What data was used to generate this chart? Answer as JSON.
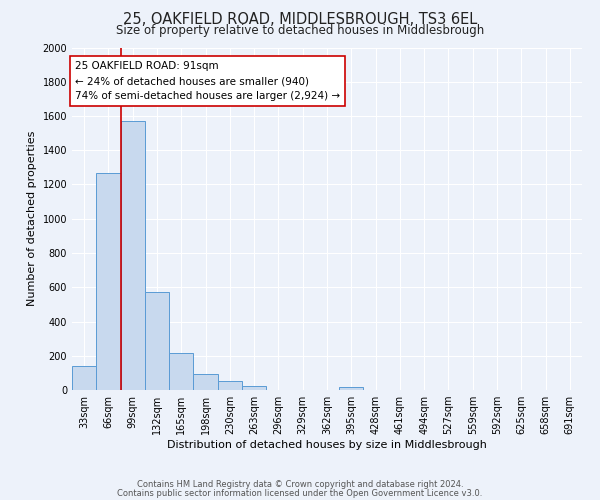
{
  "title": "25, OAKFIELD ROAD, MIDDLESBROUGH, TS3 6EL",
  "subtitle": "Size of property relative to detached houses in Middlesbrough",
  "xlabel": "Distribution of detached houses by size in Middlesbrough",
  "ylabel": "Number of detached properties",
  "bar_color": "#c8d9ee",
  "bar_edge_color": "#5a9bd5",
  "background_color": "#edf2fa",
  "grid_color": "#ffffff",
  "bin_labels": [
    "33sqm",
    "66sqm",
    "99sqm",
    "132sqm",
    "165sqm",
    "198sqm",
    "230sqm",
    "263sqm",
    "296sqm",
    "329sqm",
    "362sqm",
    "395sqm",
    "428sqm",
    "461sqm",
    "494sqm",
    "527sqm",
    "559sqm",
    "592sqm",
    "625sqm",
    "658sqm",
    "691sqm"
  ],
  "bar_values": [
    140,
    1270,
    1570,
    570,
    215,
    95,
    50,
    25,
    0,
    0,
    0,
    20,
    0,
    0,
    0,
    0,
    0,
    0,
    0,
    0,
    0
  ],
  "ylim": [
    0,
    2000
  ],
  "yticks": [
    0,
    200,
    400,
    600,
    800,
    1000,
    1200,
    1400,
    1600,
    1800,
    2000
  ],
  "vline_x": 2,
  "vline_color": "#cc0000",
  "annotation_title": "25 OAKFIELD ROAD: 91sqm",
  "annotation_line1": "← 24% of detached houses are smaller (940)",
  "annotation_line2": "74% of semi-detached houses are larger (2,924) →",
  "annotation_box_color": "#ffffff",
  "annotation_box_edge": "#cc0000",
  "footer_line1": "Contains HM Land Registry data © Crown copyright and database right 2024.",
  "footer_line2": "Contains public sector information licensed under the Open Government Licence v3.0.",
  "title_fontsize": 10.5,
  "subtitle_fontsize": 8.5,
  "axis_label_fontsize": 8,
  "tick_fontsize": 7,
  "annotation_fontsize": 7.5,
  "footer_fontsize": 6
}
